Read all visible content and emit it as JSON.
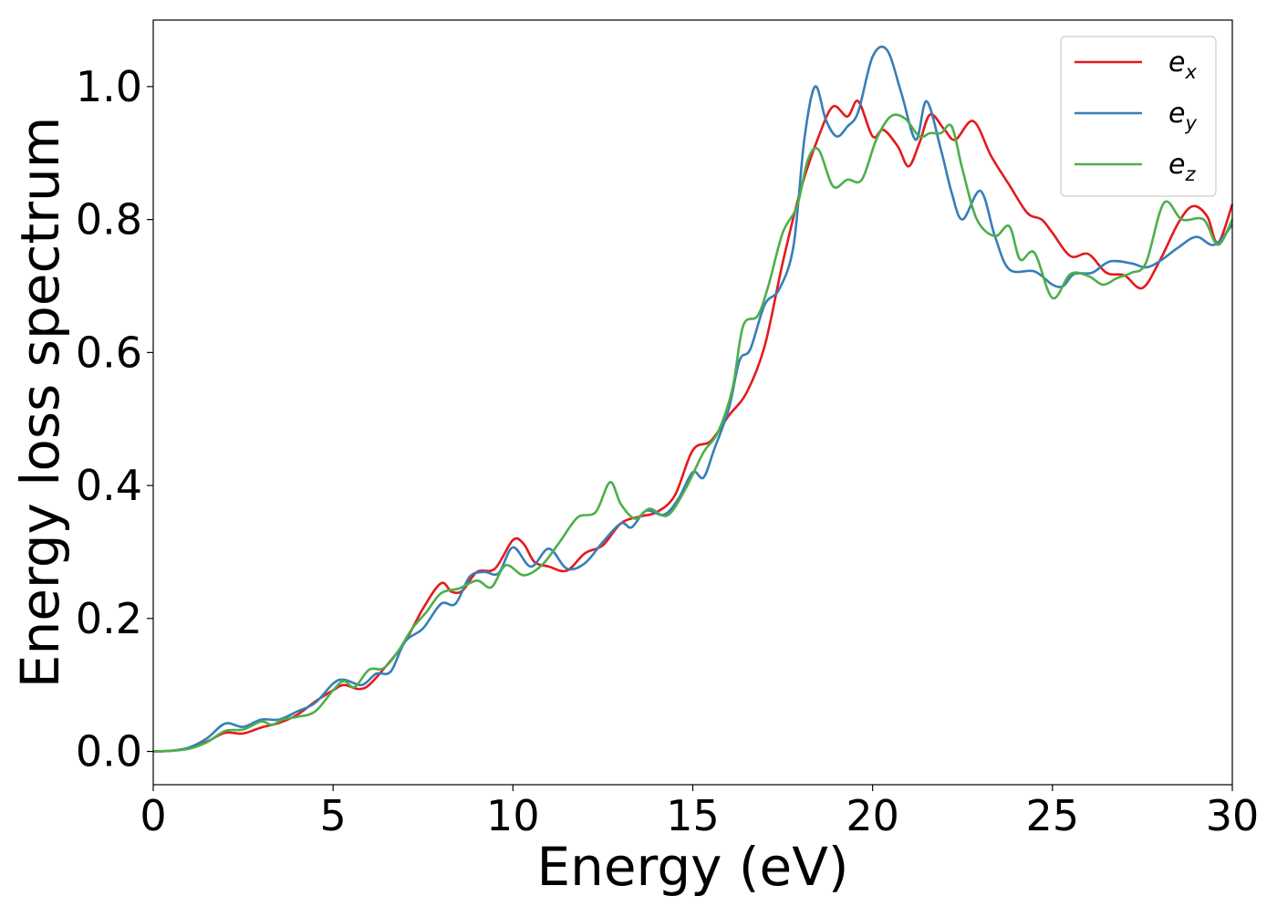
{
  "chart_data": {
    "type": "line",
    "title": "",
    "xlabel": "Energy (eV)",
    "ylabel": "Energy loss spectrum",
    "xlim": [
      0,
      30
    ],
    "ylim": [
      -0.05,
      1.1
    ],
    "xticks": [
      0,
      5,
      10,
      15,
      20,
      25,
      30
    ],
    "xtick_labels": [
      "0",
      "5",
      "10",
      "15",
      "20",
      "25",
      "30"
    ],
    "yticks": [
      0.0,
      0.2,
      0.4,
      0.6,
      0.8,
      1.0
    ],
    "ytick_labels": [
      "0.0",
      "0.2",
      "0.4",
      "0.6",
      "0.8",
      "1.0"
    ],
    "grid": false,
    "legend_position": "top-right",
    "series": [
      {
        "name": "e",
        "subscript": "x",
        "color": "#e41a1c",
        "points": [
          [
            0,
            0
          ],
          [
            0.5,
            0.001
          ],
          [
            1,
            0.005
          ],
          [
            1.5,
            0.015
          ],
          [
            2,
            0.028
          ],
          [
            2.5,
            0.027
          ],
          [
            3,
            0.036
          ],
          [
            3.5,
            0.043
          ],
          [
            4,
            0.055
          ],
          [
            4.5,
            0.075
          ],
          [
            5,
            0.092
          ],
          [
            5.3,
            0.1
          ],
          [
            5.7,
            0.094
          ],
          [
            6,
            0.1
          ],
          [
            6.5,
            0.13
          ],
          [
            7,
            0.165
          ],
          [
            7.5,
            0.215
          ],
          [
            8,
            0.253
          ],
          [
            8.3,
            0.24
          ],
          [
            8.6,
            0.242
          ],
          [
            9,
            0.27
          ],
          [
            9.5,
            0.275
          ],
          [
            10,
            0.318
          ],
          [
            10.3,
            0.312
          ],
          [
            10.6,
            0.285
          ],
          [
            11,
            0.278
          ],
          [
            11.5,
            0.272
          ],
          [
            12,
            0.298
          ],
          [
            12.5,
            0.31
          ],
          [
            13,
            0.343
          ],
          [
            13.5,
            0.353
          ],
          [
            14,
            0.36
          ],
          [
            14.5,
            0.385
          ],
          [
            15,
            0.453
          ],
          [
            15.5,
            0.467
          ],
          [
            16,
            0.505
          ],
          [
            16.5,
            0.54
          ],
          [
            17,
            0.61
          ],
          [
            17.5,
            0.735
          ],
          [
            18,
            0.845
          ],
          [
            18.5,
            0.925
          ],
          [
            18.9,
            0.97
          ],
          [
            19.3,
            0.955
          ],
          [
            19.6,
            0.978
          ],
          [
            20,
            0.925
          ],
          [
            20.3,
            0.935
          ],
          [
            20.7,
            0.91
          ],
          [
            21,
            0.88
          ],
          [
            21.3,
            0.915
          ],
          [
            21.6,
            0.958
          ],
          [
            22,
            0.935
          ],
          [
            22.3,
            0.92
          ],
          [
            22.8,
            0.948
          ],
          [
            23.3,
            0.895
          ],
          [
            23.8,
            0.852
          ],
          [
            24.3,
            0.81
          ],
          [
            24.7,
            0.8
          ],
          [
            25,
            0.78
          ],
          [
            25.5,
            0.745
          ],
          [
            26,
            0.748
          ],
          [
            26.5,
            0.72
          ],
          [
            27,
            0.716
          ],
          [
            27.5,
            0.697
          ],
          [
            28,
            0.74
          ],
          [
            28.5,
            0.795
          ],
          [
            28.9,
            0.82
          ],
          [
            29.3,
            0.805
          ],
          [
            29.6,
            0.765
          ],
          [
            30,
            0.823
          ]
        ]
      },
      {
        "name": "e",
        "subscript": "y",
        "color": "#377eb8",
        "points": [
          [
            0,
            0
          ],
          [
            0.5,
            0.001
          ],
          [
            1,
            0.006
          ],
          [
            1.5,
            0.02
          ],
          [
            2,
            0.042
          ],
          [
            2.5,
            0.037
          ],
          [
            3,
            0.048
          ],
          [
            3.5,
            0.048
          ],
          [
            4,
            0.06
          ],
          [
            4.5,
            0.073
          ],
          [
            5,
            0.102
          ],
          [
            5.3,
            0.108
          ],
          [
            5.8,
            0.1
          ],
          [
            6.2,
            0.117
          ],
          [
            6.6,
            0.12
          ],
          [
            7,
            0.165
          ],
          [
            7.5,
            0.185
          ],
          [
            8,
            0.222
          ],
          [
            8.4,
            0.222
          ],
          [
            8.8,
            0.263
          ],
          [
            9.2,
            0.27
          ],
          [
            9.6,
            0.268
          ],
          [
            10,
            0.307
          ],
          [
            10.5,
            0.278
          ],
          [
            11,
            0.305
          ],
          [
            11.5,
            0.275
          ],
          [
            12,
            0.283
          ],
          [
            12.5,
            0.315
          ],
          [
            13,
            0.343
          ],
          [
            13.3,
            0.337
          ],
          [
            13.7,
            0.362
          ],
          [
            14.2,
            0.356
          ],
          [
            14.6,
            0.38
          ],
          [
            15,
            0.42
          ],
          [
            15.3,
            0.412
          ],
          [
            15.6,
            0.455
          ],
          [
            16,
            0.515
          ],
          [
            16.3,
            0.588
          ],
          [
            16.6,
            0.605
          ],
          [
            17,
            0.672
          ],
          [
            17.4,
            0.695
          ],
          [
            17.8,
            0.76
          ],
          [
            18.1,
            0.92
          ],
          [
            18.4,
            1.0
          ],
          [
            18.7,
            0.95
          ],
          [
            19,
            0.925
          ],
          [
            19.3,
            0.94
          ],
          [
            19.6,
            0.962
          ],
          [
            20,
            1.045
          ],
          [
            20.4,
            1.055
          ],
          [
            20.8,
            0.99
          ],
          [
            21.2,
            0.92
          ],
          [
            21.5,
            0.978
          ],
          [
            21.9,
            0.905
          ],
          [
            22.2,
            0.84
          ],
          [
            22.5,
            0.8
          ],
          [
            23,
            0.843
          ],
          [
            23.4,
            0.775
          ],
          [
            23.8,
            0.725
          ],
          [
            24.5,
            0.722
          ],
          [
            25,
            0.702
          ],
          [
            25.3,
            0.7
          ],
          [
            25.6,
            0.718
          ],
          [
            26.1,
            0.72
          ],
          [
            26.6,
            0.737
          ],
          [
            27.2,
            0.734
          ],
          [
            27.6,
            0.728
          ],
          [
            28,
            0.738
          ],
          [
            28.5,
            0.758
          ],
          [
            29,
            0.774
          ],
          [
            29.5,
            0.762
          ],
          [
            30,
            0.792
          ]
        ]
      },
      {
        "name": "e",
        "subscript": "z",
        "color": "#4daf4a",
        "points": [
          [
            0,
            0
          ],
          [
            0.5,
            0.001
          ],
          [
            1,
            0.004
          ],
          [
            1.5,
            0.014
          ],
          [
            2,
            0.031
          ],
          [
            2.5,
            0.033
          ],
          [
            3,
            0.045
          ],
          [
            3.3,
            0.04
          ],
          [
            3.6,
            0.048
          ],
          [
            4,
            0.052
          ],
          [
            4.5,
            0.06
          ],
          [
            5,
            0.092
          ],
          [
            5.3,
            0.106
          ],
          [
            5.6,
            0.097
          ],
          [
            6,
            0.123
          ],
          [
            6.4,
            0.125
          ],
          [
            6.8,
            0.15
          ],
          [
            7.2,
            0.185
          ],
          [
            7.6,
            0.21
          ],
          [
            8,
            0.238
          ],
          [
            8.5,
            0.245
          ],
          [
            9,
            0.257
          ],
          [
            9.4,
            0.247
          ],
          [
            9.8,
            0.28
          ],
          [
            10.3,
            0.265
          ],
          [
            10.8,
            0.28
          ],
          [
            11.3,
            0.315
          ],
          [
            11.8,
            0.352
          ],
          [
            12.3,
            0.36
          ],
          [
            12.7,
            0.405
          ],
          [
            13,
            0.372
          ],
          [
            13.4,
            0.35
          ],
          [
            13.8,
            0.365
          ],
          [
            14.3,
            0.355
          ],
          [
            14.8,
            0.395
          ],
          [
            15.3,
            0.45
          ],
          [
            15.7,
            0.48
          ],
          [
            16.1,
            0.545
          ],
          [
            16.4,
            0.64
          ],
          [
            16.8,
            0.655
          ],
          [
            17.1,
            0.7
          ],
          [
            17.5,
            0.78
          ],
          [
            17.9,
            0.82
          ],
          [
            18.2,
            0.89
          ],
          [
            18.5,
            0.905
          ],
          [
            18.9,
            0.85
          ],
          [
            19.3,
            0.86
          ],
          [
            19.7,
            0.86
          ],
          [
            20.1,
            0.92
          ],
          [
            20.5,
            0.955
          ],
          [
            20.9,
            0.952
          ],
          [
            21.3,
            0.925
          ],
          [
            21.6,
            0.93
          ],
          [
            21.9,
            0.93
          ],
          [
            22.2,
            0.94
          ],
          [
            22.5,
            0.875
          ],
          [
            22.9,
            0.8
          ],
          [
            23.4,
            0.775
          ],
          [
            23.8,
            0.79
          ],
          [
            24.1,
            0.74
          ],
          [
            24.5,
            0.75
          ],
          [
            25,
            0.682
          ],
          [
            25.5,
            0.718
          ],
          [
            26,
            0.715
          ],
          [
            26.4,
            0.702
          ],
          [
            26.8,
            0.712
          ],
          [
            27.2,
            0.72
          ],
          [
            27.6,
            0.735
          ],
          [
            28.1,
            0.825
          ],
          [
            28.6,
            0.8
          ],
          [
            29.2,
            0.8
          ],
          [
            29.6,
            0.762
          ],
          [
            30,
            0.8
          ]
        ]
      }
    ]
  }
}
